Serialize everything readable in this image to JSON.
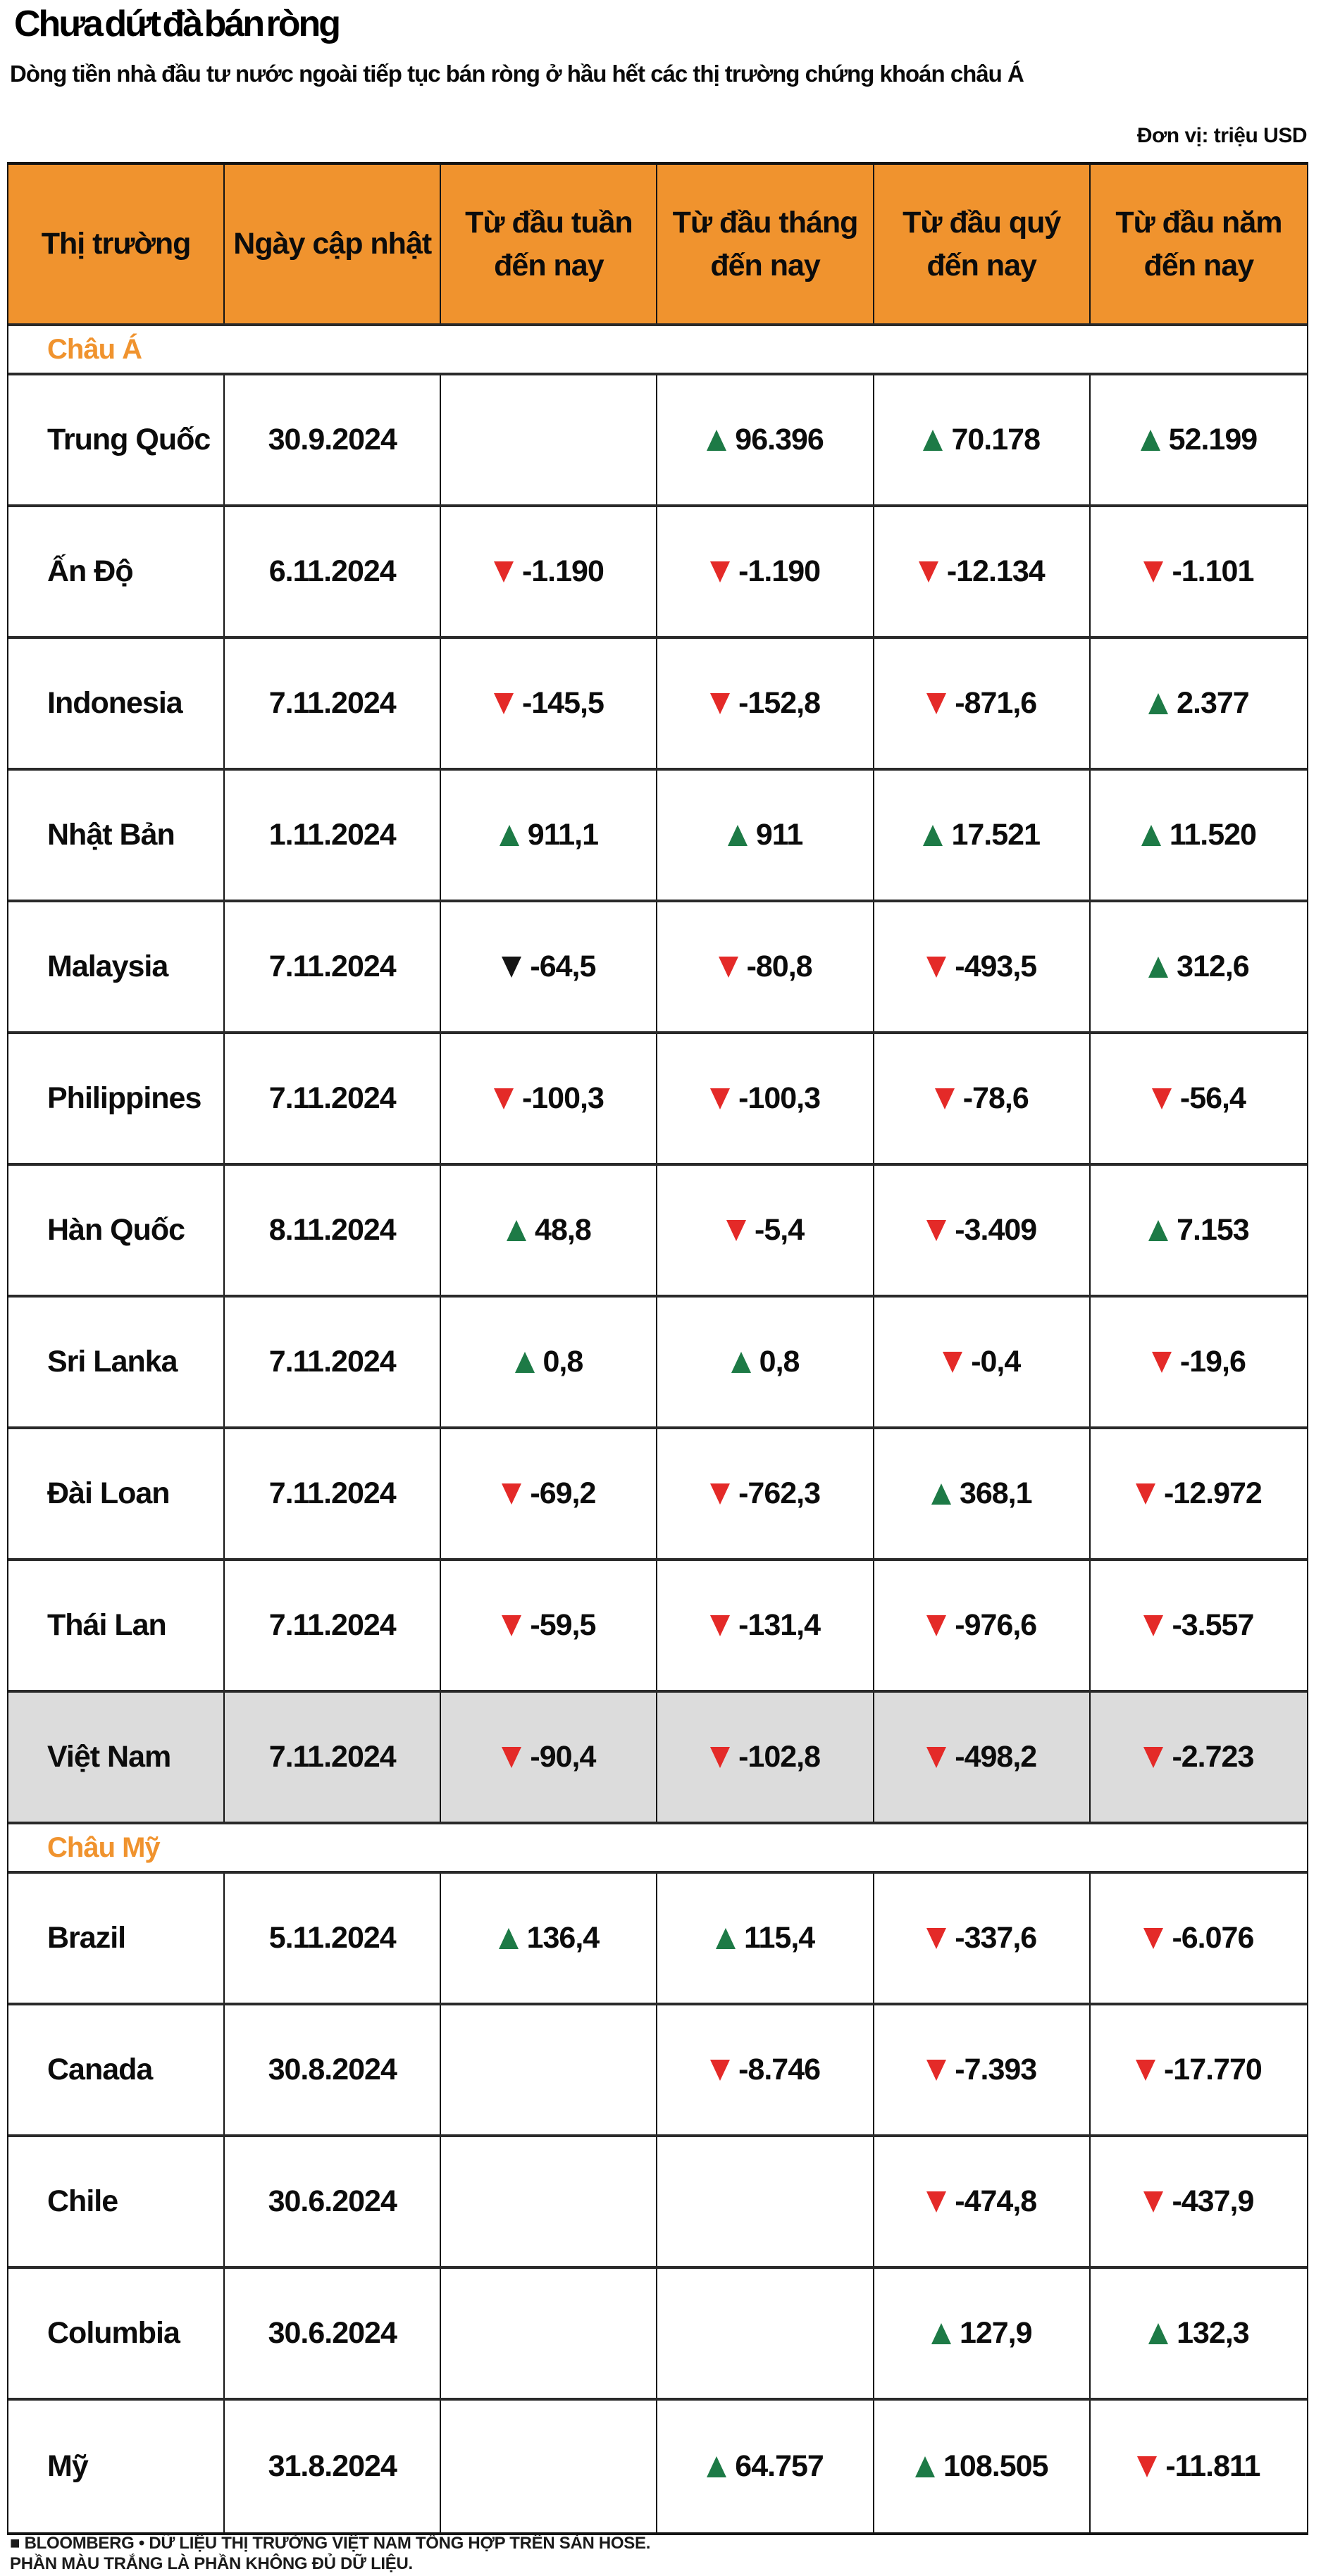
{
  "chart_data": {
    "type": "table",
    "title": "Chưa dứt đà bán ròng",
    "subtitle": "Dòng tiền nhà đầu tư nước ngoài tiếp tục bán ròng ở hầu hết các thị trường chứng khoán châu Á",
    "unit": "Đơn vị: triệu USD",
    "columns": [
      "Thị trường",
      "Ngày cập nhật",
      "Từ đầu tuần\nđến nay",
      "Từ đầu tháng\nđến nay",
      "Từ đầu quý\nđến nay",
      "Từ đầu năm\nđến nay"
    ],
    "sections": [
      {
        "label": "Châu Á",
        "rows": [
          {
            "market": "Trung Quốc",
            "date": "30.9.2024",
            "highlight": false,
            "values": [
              null,
              {
                "dir": "up",
                "value": "96.396"
              },
              {
                "dir": "up",
                "value": "70.178"
              },
              {
                "dir": "up",
                "value": "52.199"
              }
            ]
          },
          {
            "market": "Ấn Độ",
            "date": "6.11.2024",
            "highlight": false,
            "values": [
              {
                "dir": "down",
                "value": "-1.190"
              },
              {
                "dir": "down",
                "value": "-1.190"
              },
              {
                "dir": "down",
                "value": "-12.134"
              },
              {
                "dir": "down",
                "value": "-1.101"
              }
            ]
          },
          {
            "market": "Indonesia",
            "date": "7.11.2024",
            "highlight": false,
            "values": [
              {
                "dir": "down",
                "value": "-145,5"
              },
              {
                "dir": "down",
                "value": "-152,8"
              },
              {
                "dir": "down",
                "value": "-871,6"
              },
              {
                "dir": "up",
                "value": "2.377"
              }
            ]
          },
          {
            "market": "Nhật Bản",
            "date": "1.11.2024",
            "highlight": false,
            "values": [
              {
                "dir": "up",
                "value": "911,1"
              },
              {
                "dir": "up",
                "value": "911"
              },
              {
                "dir": "up",
                "value": "17.521"
              },
              {
                "dir": "up",
                "value": "11.520"
              }
            ]
          },
          {
            "market": "Malaysia",
            "date": "7.11.2024",
            "highlight": false,
            "values": [
              {
                "dir": "down black",
                "value": "-64,5"
              },
              {
                "dir": "down",
                "value": "-80,8"
              },
              {
                "dir": "down",
                "value": "-493,5"
              },
              {
                "dir": "up",
                "value": "312,6"
              }
            ]
          },
          {
            "market": "Philippines",
            "date": "7.11.2024",
            "highlight": false,
            "values": [
              {
                "dir": "down",
                "value": "-100,3"
              },
              {
                "dir": "down",
                "value": "-100,3"
              },
              {
                "dir": "down",
                "value": "-78,6"
              },
              {
                "dir": "down",
                "value": "-56,4"
              }
            ]
          },
          {
            "market": "Hàn Quốc",
            "date": "8.11.2024",
            "highlight": false,
            "values": [
              {
                "dir": "up",
                "value": "48,8"
              },
              {
                "dir": "down",
                "value": "-5,4"
              },
              {
                "dir": "down",
                "value": "-3.409"
              },
              {
                "dir": "up",
                "value": "7.153"
              }
            ]
          },
          {
            "market": "Sri Lanka",
            "date": "7.11.2024",
            "highlight": false,
            "values": [
              {
                "dir": "up",
                "value": "0,8"
              },
              {
                "dir": "up",
                "value": "0,8"
              },
              {
                "dir": "down",
                "value": "-0,4"
              },
              {
                "dir": "down",
                "value": "-19,6"
              }
            ]
          },
          {
            "market": "Đài Loan",
            "date": "7.11.2024",
            "highlight": false,
            "values": [
              {
                "dir": "down",
                "value": "-69,2"
              },
              {
                "dir": "down",
                "value": "-762,3"
              },
              {
                "dir": "up",
                "value": "368,1"
              },
              {
                "dir": "down",
                "value": "-12.972"
              }
            ]
          },
          {
            "market": "Thái Lan",
            "date": "7.11.2024",
            "highlight": false,
            "values": [
              {
                "dir": "down",
                "value": "-59,5"
              },
              {
                "dir": "down",
                "value": "-131,4"
              },
              {
                "dir": "down",
                "value": "-976,6"
              },
              {
                "dir": "down",
                "value": "-3.557"
              }
            ]
          },
          {
            "market": "Việt Nam",
            "date": "7.11.2024",
            "highlight": true,
            "values": [
              {
                "dir": "down",
                "value": "-90,4"
              },
              {
                "dir": "down",
                "value": "-102,8"
              },
              {
                "dir": "down",
                "value": "-498,2"
              },
              {
                "dir": "down",
                "value": "-2.723"
              }
            ]
          }
        ]
      },
      {
        "label": "Châu Mỹ",
        "rows": [
          {
            "market": "Brazil",
            "date": "5.11.2024",
            "highlight": false,
            "values": [
              {
                "dir": "up",
                "value": "136,4"
              },
              {
                "dir": "up",
                "value": "115,4"
              },
              {
                "dir": "down",
                "value": "-337,6"
              },
              {
                "dir": "down",
                "value": "-6.076"
              }
            ]
          },
          {
            "market": "Canada",
            "date": "30.8.2024",
            "highlight": false,
            "values": [
              null,
              {
                "dir": "down",
                "value": "-8.746"
              },
              {
                "dir": "down",
                "value": "-7.393"
              },
              {
                "dir": "down",
                "value": "-17.770"
              }
            ]
          },
          {
            "market": "Chile",
            "date": "30.6.2024",
            "highlight": false,
            "values": [
              null,
              null,
              {
                "dir": "down",
                "value": "-474,8"
              },
              {
                "dir": "down",
                "value": "-437,9"
              }
            ]
          },
          {
            "market": "Columbia",
            "date": "30.6.2024",
            "highlight": false,
            "values": [
              null,
              null,
              {
                "dir": "up",
                "value": "127,9"
              },
              {
                "dir": "up",
                "value": "132,3"
              }
            ]
          },
          {
            "market": "Mỹ",
            "date": "31.8.2024",
            "highlight": false,
            "values": [
              null,
              {
                "dir": "up",
                "value": "64.757"
              },
              {
                "dir": "up",
                "value": "108.505"
              },
              {
                "dir": "down",
                "value": "-11.811"
              }
            ]
          }
        ]
      }
    ]
  },
  "footer": {
    "line1": "■ BLOOMBERG • DỮ LIỆU THỊ TRƯỜNG VIỆT NAM TỔNG HỢP TRÊN SÀN HOSE.",
    "line2": "PHẦN MÀU TRẮNG LÀ PHẦN KHÔNG ĐỦ DỮ LIỆU."
  },
  "colors": {
    "accent_orange": "#f0932e",
    "up_green": "#1d7a46",
    "down_red": "#e42a28",
    "highlight_gray": "#dcdcdc",
    "border_black": "#141414"
  }
}
